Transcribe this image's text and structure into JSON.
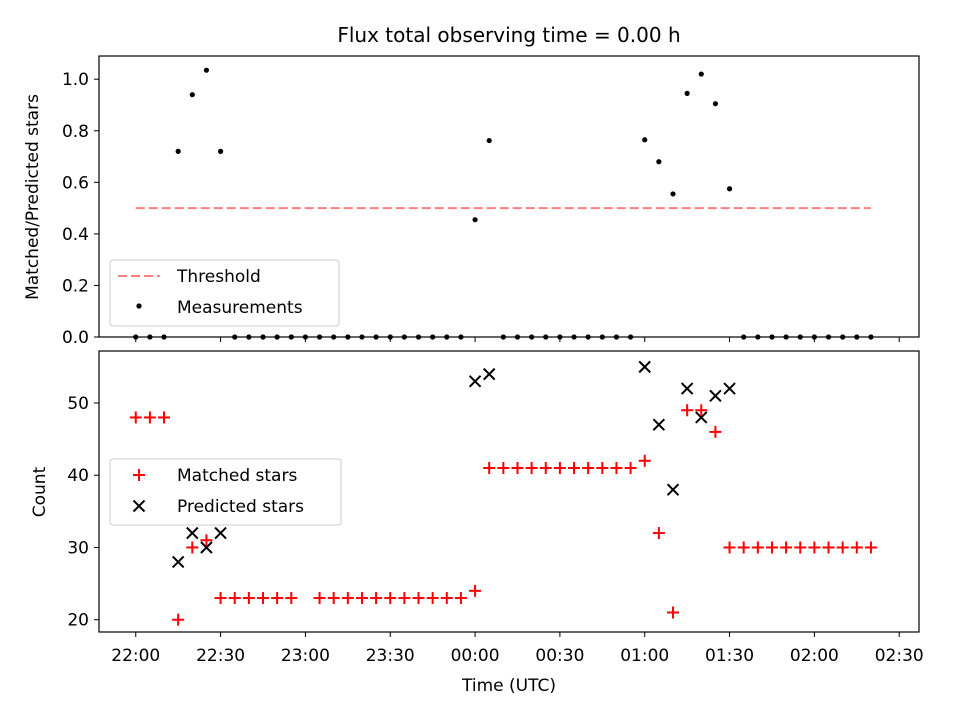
{
  "title": "Flux total observing time = 0.00 h",
  "colors": {
    "threshold": "#ff7f7f",
    "measurement": "#000000",
    "matched": "#ff0000",
    "predicted": "#000000"
  },
  "chart_data": [
    {
      "type": "scatter",
      "ylabel": "Matched/Predicted stars",
      "ylim": [
        0,
        1.09
      ],
      "yticks": [
        "0.0",
        "0.2",
        "0.4",
        "0.6",
        "0.8",
        "1.0"
      ],
      "xlim": [
        "21:47",
        "02:37"
      ],
      "legend_placement": "lower-left",
      "threshold": {
        "name": "Threshold",
        "value": 0.5,
        "x_range": [
          "22:00",
          "02:20"
        ]
      },
      "series": [
        {
          "name": "Measurements",
          "x": [
            "22:00",
            "22:05",
            "22:10",
            "22:15",
            "22:20",
            "22:25",
            "22:30",
            "22:35",
            "22:40",
            "22:45",
            "22:50",
            "22:55",
            "23:00",
            "23:05",
            "23:10",
            "23:15",
            "23:20",
            "23:25",
            "23:30",
            "23:35",
            "23:40",
            "23:45",
            "23:50",
            "23:55",
            "00:00",
            "00:05",
            "00:10",
            "00:15",
            "00:20",
            "00:25",
            "00:30",
            "00:35",
            "00:40",
            "00:45",
            "00:50",
            "00:55",
            "01:00",
            "01:05",
            "01:10",
            "01:15",
            "01:20",
            "01:25",
            "01:30",
            "01:35",
            "01:40",
            "01:45",
            "01:50",
            "01:55",
            "02:00",
            "02:05",
            "02:10",
            "02:15",
            "02:20"
          ],
          "y": [
            0,
            0,
            0,
            0.72,
            0.94,
            1.035,
            0.72,
            0,
            0,
            0,
            0,
            0,
            0,
            0,
            0,
            0,
            0,
            0,
            0,
            0,
            0,
            0,
            0,
            0,
            0.455,
            0.762,
            0,
            0,
            0,
            0,
            0,
            0,
            0,
            0,
            0,
            0,
            0.765,
            0.68,
            0.555,
            0.945,
            1.02,
            0.905,
            0.575,
            0,
            0,
            0,
            0,
            0,
            0,
            0,
            0,
            0,
            0
          ]
        }
      ]
    },
    {
      "type": "scatter",
      "ylabel": "Count",
      "xlabel": "Time (UTC)",
      "ylim": [
        18.3,
        57.2
      ],
      "yticks": [
        "20",
        "30",
        "40",
        "50"
      ],
      "xlim": [
        "21:47",
        "02:37"
      ],
      "xticks": [
        "22:00",
        "22:30",
        "23:00",
        "23:30",
        "00:00",
        "00:30",
        "01:00",
        "01:30",
        "02:00",
        "02:30"
      ],
      "legend_placement": "center-left",
      "series": [
        {
          "name": "Matched stars",
          "x": [
            "22:00",
            "22:05",
            "22:10",
            "22:15",
            "22:20",
            "22:25",
            "22:30",
            "22:35",
            "22:40",
            "22:45",
            "22:50",
            "22:55",
            "23:05",
            "23:10",
            "23:15",
            "23:20",
            "23:25",
            "23:30",
            "23:35",
            "23:40",
            "23:45",
            "23:50",
            "23:55",
            "00:00",
            "00:05",
            "00:10",
            "00:15",
            "00:20",
            "00:25",
            "00:30",
            "00:35",
            "00:40",
            "00:45",
            "00:50",
            "00:55",
            "01:00",
            "01:05",
            "01:10",
            "01:15",
            "01:20",
            "01:25",
            "01:30",
            "01:35",
            "01:40",
            "01:45",
            "01:50",
            "01:55",
            "02:00",
            "02:05",
            "02:10",
            "02:15",
            "02:20"
          ],
          "y": [
            48,
            48,
            48,
            20,
            30,
            31,
            23,
            23,
            23,
            23,
            23,
            23,
            23,
            23,
            23,
            23,
            23,
            23,
            23,
            23,
            23,
            23,
            23,
            24,
            41,
            41,
            41,
            41,
            41,
            41,
            41,
            41,
            41,
            41,
            41,
            42,
            32,
            21,
            49,
            49,
            46,
            30,
            30,
            30,
            30,
            30,
            30,
            30,
            30,
            30,
            30,
            30
          ]
        },
        {
          "name": "Predicted stars",
          "x": [
            "22:15",
            "22:20",
            "22:25",
            "22:30",
            "00:00",
            "00:05",
            "01:00",
            "01:05",
            "01:10",
            "01:15",
            "01:20",
            "01:25",
            "01:30"
          ],
          "y": [
            28,
            32,
            30,
            32,
            53,
            54,
            55,
            47,
            38,
            52,
            48,
            51,
            52
          ]
        }
      ]
    }
  ]
}
